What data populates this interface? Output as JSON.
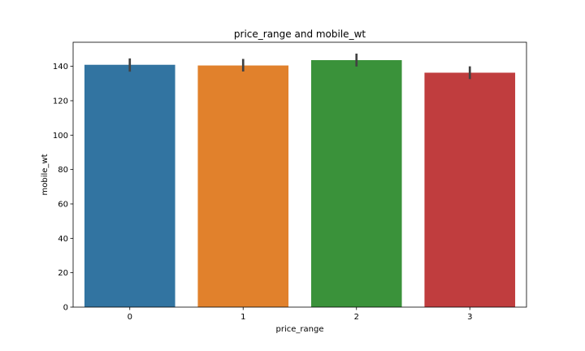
{
  "chart_data": {
    "type": "bar",
    "title": "price_range and mobile_wt",
    "xlabel": "price_range",
    "ylabel": "mobile_wt",
    "categories": [
      "0",
      "1",
      "2",
      "3"
    ],
    "values": [
      140.9,
      140.5,
      143.6,
      136.3
    ],
    "error_low": [
      136.9,
      137.0,
      139.9,
      132.6
    ],
    "error_high": [
      144.6,
      144.3,
      147.4,
      140.0
    ],
    "colors": [
      "#3274a1",
      "#e1812c",
      "#3a923a",
      "#c03d3e"
    ],
    "error_color": "#424242",
    "ylim": [
      0,
      154
    ],
    "yticks": [
      0,
      20,
      40,
      60,
      80,
      100,
      120,
      140
    ],
    "grid": false,
    "legend": "none"
  }
}
